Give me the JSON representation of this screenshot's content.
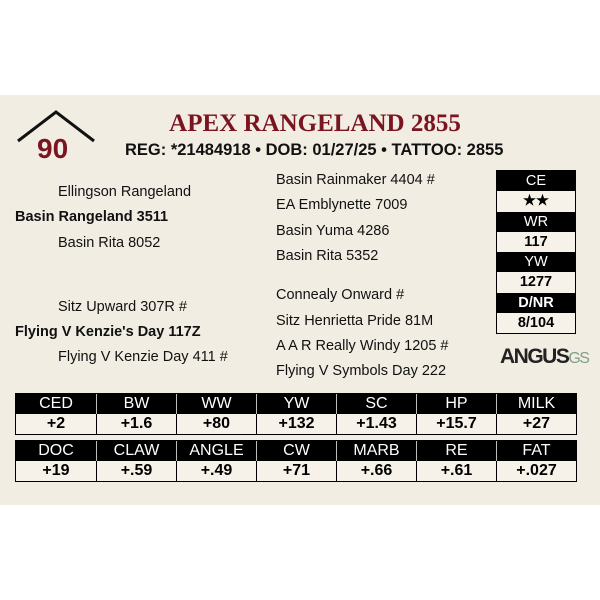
{
  "lot": {
    "score": "90",
    "name": "APEX RANGELAND 2855",
    "info": "REG: *21484918 • DOB: 01/27/25 • TATTOO: 2855"
  },
  "pedigree": {
    "sire_sire": "Ellingson Rangeland",
    "sire": "Basin Rangeland 3511",
    "sire_dam": "Basin Rita 8052",
    "dam_sire": "Sitz Upward 307R #",
    "dam": "Flying V Kenzie's Day 117Z",
    "dam_dam": "Flying V Kenzie Day 411 #",
    "outer": [
      "Basin Rainmaker 4404 #",
      "EA Emblynette 7009",
      "Basin Yuma 4286",
      "Basin Rita 5352",
      "Connealy Onward #",
      "Sitz Henrietta Pride 81M",
      "A A R Really Windy 1205 #",
      "Flying V Symbols Day 222"
    ]
  },
  "side": [
    {
      "label": "CE",
      "value": "★★"
    },
    {
      "label": "WR",
      "value": "117"
    },
    {
      "label": "YW",
      "value": "1277"
    },
    {
      "label": "D/NR",
      "value": "8/104"
    }
  ],
  "logo": {
    "text": "ANGUS",
    "suffix": "GS"
  },
  "epd1": {
    "headers": [
      "CED",
      "BW",
      "WW",
      "YW",
      "SC",
      "HP",
      "MILK"
    ],
    "values": [
      "+2",
      "+1.6",
      "+80",
      "+132",
      "+1.43",
      "+15.7",
      "+27"
    ]
  },
  "epd2": {
    "headers": [
      "DOC",
      "CLAW",
      "ANGLE",
      "CW",
      "MARB",
      "RE",
      "FAT"
    ],
    "values": [
      "+19",
      "+.59",
      "+.49",
      "+71",
      "+.66",
      "+.61",
      "+.027"
    ]
  },
  "colors": {
    "accent": "#7a1420",
    "background": "#f2ede3"
  }
}
